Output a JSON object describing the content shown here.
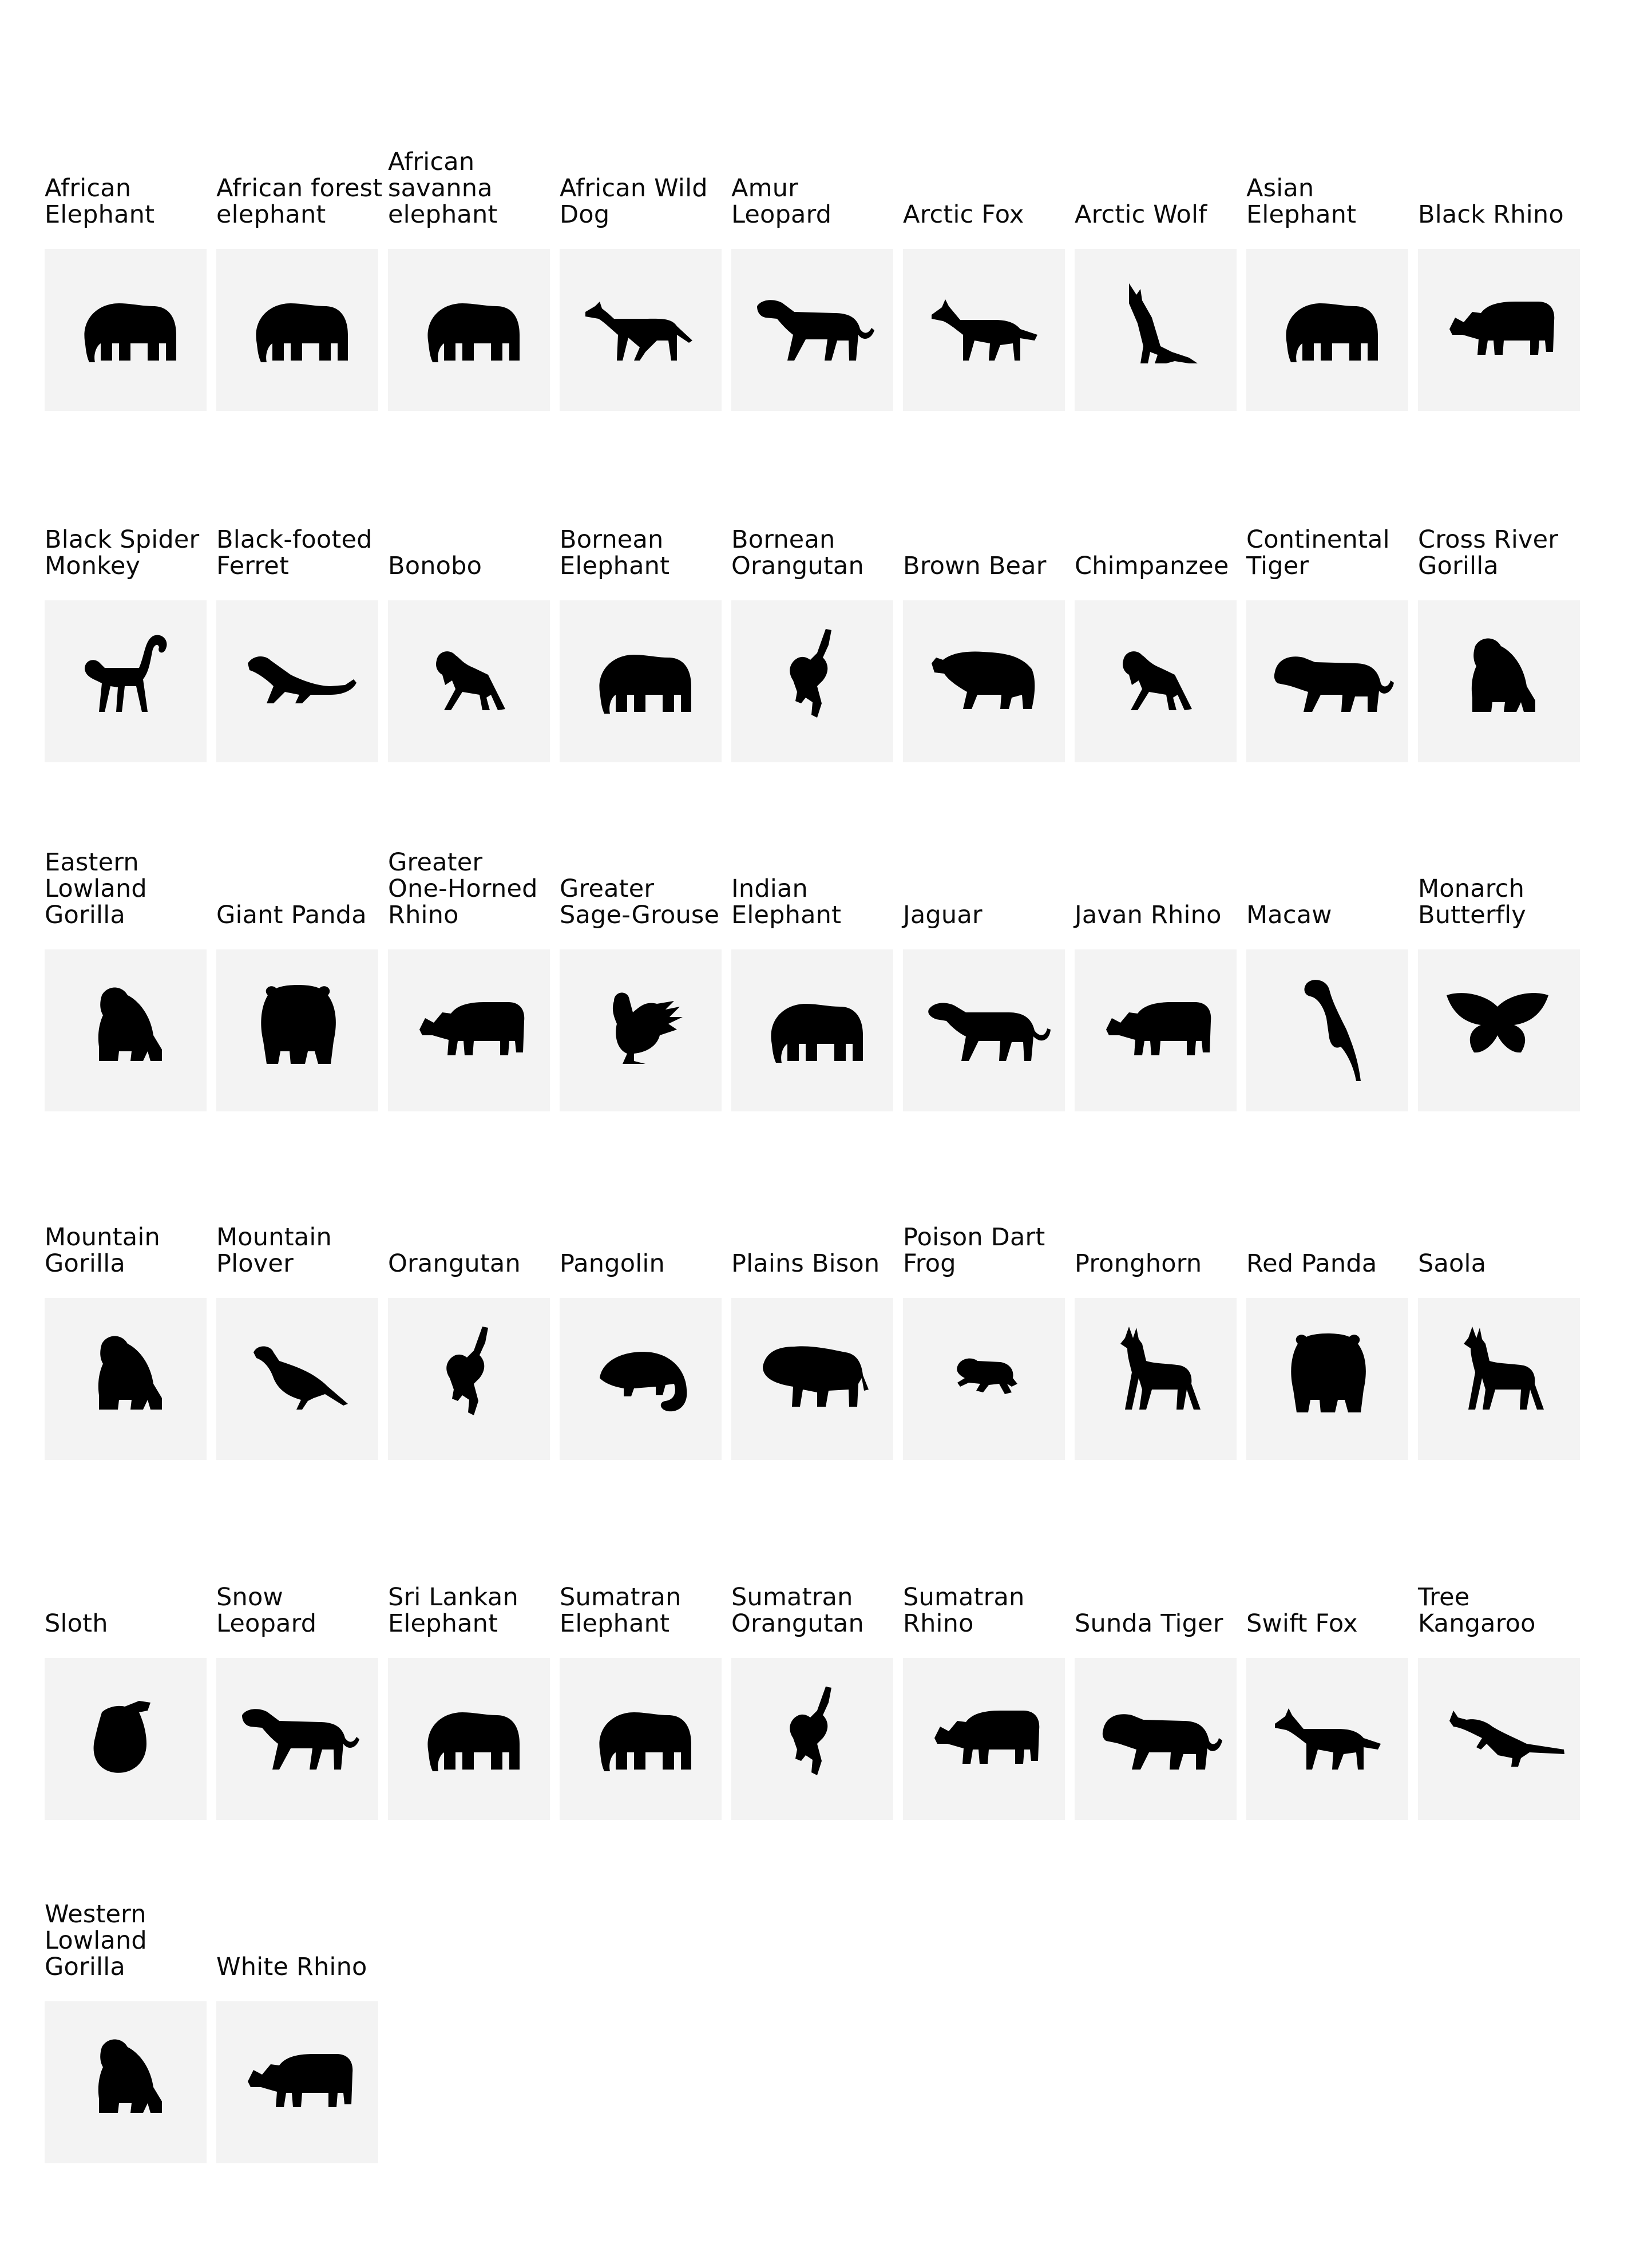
{
  "animals": [
    {
      "name": "African\nElephant",
      "icon": "elephant-icon"
    },
    {
      "name": "African forest\nelephant",
      "icon": "elephant-icon"
    },
    {
      "name": "African\nsavanna\nelephant",
      "icon": "elephant-icon"
    },
    {
      "name": "African Wild\nDog",
      "icon": "wild-dog-icon"
    },
    {
      "name": "Amur\nLeopard",
      "icon": "leopard-icon"
    },
    {
      "name": "Arctic Fox",
      "icon": "fox-icon"
    },
    {
      "name": "Arctic Wolf",
      "icon": "howling-wolf-icon"
    },
    {
      "name": "Asian\nElephant",
      "icon": "elephant-icon"
    },
    {
      "name": "Black Rhino",
      "icon": "rhino-icon"
    },
    {
      "name": "Black Spider\nMonkey",
      "icon": "spider-monkey-icon"
    },
    {
      "name": "Black-footed\nFerret",
      "icon": "ferret-icon"
    },
    {
      "name": "Bonobo",
      "icon": "chimpanzee-icon"
    },
    {
      "name": "Bornean\nElephant",
      "icon": "elephant-icon"
    },
    {
      "name": "Bornean\nOrangutan",
      "icon": "orangutan-icon"
    },
    {
      "name": "Brown Bear",
      "icon": "bear-icon"
    },
    {
      "name": "Chimpanzee",
      "icon": "chimpanzee-icon"
    },
    {
      "name": "Continental\nTiger",
      "icon": "tiger-icon"
    },
    {
      "name": "Cross River\nGorilla",
      "icon": "gorilla-icon"
    },
    {
      "name": "Eastern\nLowland\nGorilla",
      "icon": "gorilla-icon"
    },
    {
      "name": "Giant Panda",
      "icon": "panda-icon"
    },
    {
      "name": "Greater\nOne-Horned\nRhino",
      "icon": "rhino-icon"
    },
    {
      "name": "Greater\nSage-Grouse",
      "icon": "sage-grouse-icon"
    },
    {
      "name": "Indian\nElephant",
      "icon": "elephant-icon"
    },
    {
      "name": "Jaguar",
      "icon": "jaguar-icon"
    },
    {
      "name": "Javan Rhino",
      "icon": "rhino-icon"
    },
    {
      "name": "Macaw",
      "icon": "macaw-icon"
    },
    {
      "name": "Monarch\nButterfly",
      "icon": "butterfly-icon"
    },
    {
      "name": "Mountain\nGorilla",
      "icon": "gorilla-icon"
    },
    {
      "name": "Mountain\nPlover",
      "icon": "plover-icon"
    },
    {
      "name": "Orangutan",
      "icon": "orangutan-icon"
    },
    {
      "name": "Pangolin",
      "icon": "pangolin-icon"
    },
    {
      "name": "Plains Bison",
      "icon": "bison-icon"
    },
    {
      "name": "Poison Dart\nFrog",
      "icon": "frog-icon"
    },
    {
      "name": "Pronghorn",
      "icon": "deer-icon"
    },
    {
      "name": "Red Panda",
      "icon": "panda-icon"
    },
    {
      "name": "Saola",
      "icon": "deer-icon"
    },
    {
      "name": "Sloth",
      "icon": "sloth-icon"
    },
    {
      "name": "Snow\nLeopard",
      "icon": "leopard-icon"
    },
    {
      "name": "Sri Lankan\nElephant",
      "icon": "elephant-icon"
    },
    {
      "name": "Sumatran\nElephant",
      "icon": "elephant-icon"
    },
    {
      "name": "Sumatran\nOrangutan",
      "icon": "orangutan-icon"
    },
    {
      "name": "Sumatran\nRhino",
      "icon": "rhino-icon"
    },
    {
      "name": "Sunda Tiger",
      "icon": "tiger-icon"
    },
    {
      "name": "Swift Fox",
      "icon": "fox-icon"
    },
    {
      "name": "Tree\nKangaroo",
      "icon": "kangaroo-icon"
    },
    {
      "name": "Western\nLowland\nGorilla",
      "icon": "gorilla-icon"
    },
    {
      "name": "White Rhino",
      "icon": "rhino-icon"
    }
  ]
}
